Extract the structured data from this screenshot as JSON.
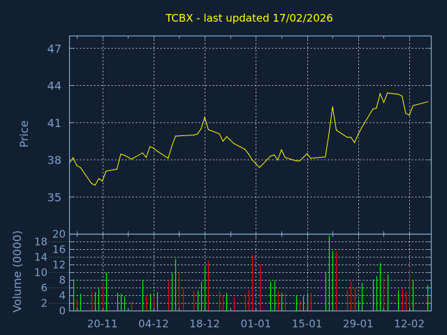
{
  "chart_data": {
    "type": "line",
    "title": "TCBX - last updated 17/02/2026",
    "colors": {
      "background": "#111f30",
      "axis": "#8aaad0",
      "text": "#7f9fc8",
      "grid": "#c8c8c8",
      "price_line": "#ffff00",
      "title": "#ffff00",
      "up": "#00ff00",
      "down": "#ff0000"
    },
    "grid": true,
    "xlim": [
      "2025-11-11",
      "2026-02-18"
    ],
    "x_tick_labels": [
      {
        "date": "2025-11-20",
        "label": "20-11"
      },
      {
        "date": "2025-12-04",
        "label": "04-12"
      },
      {
        "date": "2025-12-18",
        "label": "18-12"
      },
      {
        "date": "2026-01-01",
        "label": "01-01"
      },
      {
        "date": "2026-01-15",
        "label": "15-01"
      },
      {
        "date": "2026-01-29",
        "label": "29-01"
      },
      {
        "date": "2026-02-12",
        "label": "12-02"
      }
    ],
    "price_panel": {
      "ylabel": "Price",
      "ylim": [
        32,
        48
      ],
      "yticks": [
        35,
        38,
        41,
        44,
        47
      ]
    },
    "volume_panel": {
      "ylabel": "Volume (0000)",
      "ylim": [
        0,
        20
      ],
      "yticks": [
        0,
        2,
        4,
        6,
        8,
        10,
        12,
        14,
        16,
        18,
        20
      ]
    },
    "series": [
      {
        "date": "2025-11-11",
        "price": 37.75,
        "volume": null,
        "dir": null
      },
      {
        "date": "2025-11-12",
        "price": 38.17,
        "volume": 8.2,
        "dir": "up"
      },
      {
        "date": "2025-11-13",
        "price": 37.53,
        "volume": 3.1,
        "dir": "down"
      },
      {
        "date": "2025-11-14",
        "price": 37.38,
        "volume": 4.5,
        "dir": "up"
      },
      {
        "date": "2025-11-17",
        "price": 36.1,
        "volume": 5.1,
        "dir": "down"
      },
      {
        "date": "2025-11-18",
        "price": 35.95,
        "volume": 4.9,
        "dir": "up"
      },
      {
        "date": "2025-11-19",
        "price": 36.48,
        "volume": 5.8,
        "dir": "up"
      },
      {
        "date": "2025-11-20",
        "price": 36.3,
        "volume": 7.3,
        "dir": "down"
      },
      {
        "date": "2025-11-21",
        "price": 37.08,
        "volume": 9.9,
        "dir": "up"
      },
      {
        "date": "2025-11-24",
        "price": 37.25,
        "volume": 4.7,
        "dir": "up"
      },
      {
        "date": "2025-11-25",
        "price": 38.45,
        "volume": 4.5,
        "dir": "up"
      },
      {
        "date": "2025-11-26",
        "price": 38.37,
        "volume": 3.8,
        "dir": "up"
      },
      {
        "date": "2025-11-28",
        "price": 38.06,
        "volume": 2.4,
        "dir": "down"
      },
      {
        "date": "2025-12-01",
        "price": 38.56,
        "volume": 8.0,
        "dir": "up"
      },
      {
        "date": "2025-12-02",
        "price": 38.19,
        "volume": 4.0,
        "dir": "down"
      },
      {
        "date": "2025-12-03",
        "price": 39.07,
        "volume": 4.5,
        "dir": "up"
      },
      {
        "date": "2025-12-04",
        "price": 38.94,
        "volume": 3.5,
        "dir": "down"
      },
      {
        "date": "2025-12-05",
        "price": 38.7,
        "volume": 4.9,
        "dir": "up"
      },
      {
        "date": "2025-12-08",
        "price": 38.13,
        "volume": 8.0,
        "dir": "down"
      },
      {
        "date": "2025-12-09",
        "price": 39.1,
        "volume": 9.8,
        "dir": "up"
      },
      {
        "date": "2025-12-10",
        "price": 39.91,
        "volume": 13.5,
        "dir": "up"
      },
      {
        "date": "2025-12-11",
        "price": 39.93,
        "volume": 10.1,
        "dir": "down"
      },
      {
        "date": "2025-12-12",
        "price": 39.95,
        "volume": 6.0,
        "dir": "down"
      },
      {
        "date": "2025-12-15",
        "price": 40.0,
        "volume": 5.3,
        "dir": "down"
      },
      {
        "date": "2025-12-16",
        "price": 40.08,
        "volume": 5.3,
        "dir": "up"
      },
      {
        "date": "2025-12-17",
        "price": 40.5,
        "volume": 7.6,
        "dir": "up"
      },
      {
        "date": "2025-12-18",
        "price": 41.43,
        "volume": 11.8,
        "dir": "up"
      },
      {
        "date": "2025-12-19",
        "price": 40.44,
        "volume": 13.1,
        "dir": "down"
      },
      {
        "date": "2025-12-22",
        "price": 40.1,
        "volume": 5.3,
        "dir": "down"
      },
      {
        "date": "2025-12-23",
        "price": 39.5,
        "volume": 3.9,
        "dir": "down"
      },
      {
        "date": "2025-12-24",
        "price": 39.87,
        "volume": 4.7,
        "dir": "up"
      },
      {
        "date": "2025-12-26",
        "price": 39.31,
        "volume": 3.5,
        "dir": "down"
      },
      {
        "date": "2025-12-29",
        "price": 38.85,
        "volume": 4.5,
        "dir": "down"
      },
      {
        "date": "2025-12-30",
        "price": 38.47,
        "volume": 5.5,
        "dir": "down"
      },
      {
        "date": "2025-12-31",
        "price": 38.0,
        "volume": 14.7,
        "dir": "down"
      },
      {
        "date": "2026-01-02",
        "price": 37.38,
        "volume": 12.1,
        "dir": "down"
      },
      {
        "date": "2026-01-05",
        "price": 38.3,
        "volume": 7.6,
        "dir": "up"
      },
      {
        "date": "2026-01-06",
        "price": 38.4,
        "volume": 7.9,
        "dir": "up"
      },
      {
        "date": "2026-01-07",
        "price": 38.0,
        "volume": 5.1,
        "dir": "down"
      },
      {
        "date": "2026-01-08",
        "price": 38.81,
        "volume": 4.7,
        "dir": "up"
      },
      {
        "date": "2026-01-09",
        "price": 38.19,
        "volume": 4.5,
        "dir": "down"
      },
      {
        "date": "2026-01-12",
        "price": 37.91,
        "volume": 3.9,
        "dir": "up"
      },
      {
        "date": "2026-01-13",
        "price": 37.91,
        "volume": 2.7,
        "dir": "down"
      },
      {
        "date": "2026-01-14",
        "price": 38.2,
        "volume": 3.8,
        "dir": "up"
      },
      {
        "date": "2026-01-15",
        "price": 38.5,
        "volume": 4.7,
        "dir": "up"
      },
      {
        "date": "2026-01-16",
        "price": 38.13,
        "volume": 4.7,
        "dir": "down"
      },
      {
        "date": "2026-01-20",
        "price": 38.23,
        "volume": 10.2,
        "dir": "up"
      },
      {
        "date": "2026-01-21",
        "price": 40.1,
        "volume": 19.6,
        "dir": "up"
      },
      {
        "date": "2026-01-22",
        "price": 42.28,
        "volume": 15.6,
        "dir": "up"
      },
      {
        "date": "2026-01-23",
        "price": 40.4,
        "volume": 15.6,
        "dir": "down"
      },
      {
        "date": "2026-01-26",
        "price": 39.82,
        "volume": 5.3,
        "dir": "down"
      },
      {
        "date": "2026-01-27",
        "price": 39.82,
        "volume": 7.8,
        "dir": "down"
      },
      {
        "date": "2026-01-28",
        "price": 39.4,
        "volume": 6.0,
        "dir": "down"
      },
      {
        "date": "2026-01-29",
        "price": 40.06,
        "volume": 2.9,
        "dir": "up"
      },
      {
        "date": "2026-01-30",
        "price": 40.62,
        "volume": 7.3,
        "dir": "up"
      },
      {
        "date": "2026-02-02",
        "price": 42.09,
        "volume": 8.2,
        "dir": "up"
      },
      {
        "date": "2026-02-03",
        "price": 42.18,
        "volume": 9.1,
        "dir": "up"
      },
      {
        "date": "2026-02-04",
        "price": 43.34,
        "volume": 12.5,
        "dir": "up"
      },
      {
        "date": "2026-02-05",
        "price": 42.63,
        "volume": 8.5,
        "dir": "down"
      },
      {
        "date": "2026-02-06",
        "price": 43.4,
        "volume": 9.5,
        "dir": "up"
      },
      {
        "date": "2026-02-09",
        "price": 43.29,
        "volume": 5.3,
        "dir": "up"
      },
      {
        "date": "2026-02-10",
        "price": 43.15,
        "volume": 5.8,
        "dir": "down"
      },
      {
        "date": "2026-02-11",
        "price": 41.75,
        "volume": 5.1,
        "dir": "down"
      },
      {
        "date": "2026-02-12",
        "price": 41.6,
        "volume": 10.9,
        "dir": "down"
      },
      {
        "date": "2026-02-13",
        "price": 42.37,
        "volume": 7.9,
        "dir": "up"
      },
      {
        "date": "2026-02-17",
        "price": 42.69,
        "volume": 6.7,
        "dir": "up"
      }
    ]
  }
}
